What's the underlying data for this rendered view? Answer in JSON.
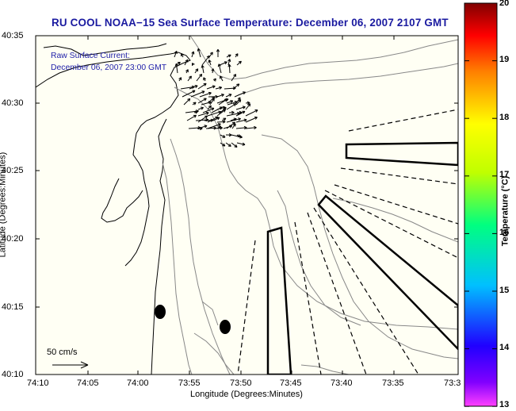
{
  "title": "RU COOL  NOAA−15  Sea Surface Temperature:  December 06, 2007 2107 GMT",
  "current_label_1": "Raw Surface Current:",
  "current_label_2": "December 06, 2007 23:00 GMT",
  "x_axis_label": "Longitude (Degrees:Minutes)",
  "y_axis_label": "Latitude (Degrees:Minutes)",
  "x_ticks": [
    "74:10",
    "74:05",
    "74:00",
    "73:55",
    "73:50",
    "73:45",
    "73:40",
    "73:35",
    "73:3"
  ],
  "y_ticks": [
    "40:35",
    "40:30",
    "40:25",
    "40:20",
    "40:15",
    "40:10"
  ],
  "colorbar": {
    "label": "Temperature (°C)",
    "ticks": [
      "20",
      "19",
      "18",
      "17",
      "16",
      "15",
      "14",
      "13"
    ],
    "colors": [
      "#ff00ff",
      "#2000ff",
      "#00b0ff",
      "#00ff80",
      "#c0ff00",
      "#ffff00",
      "#ff8000",
      "#ff0000",
      "#800000"
    ]
  },
  "scale": {
    "label": "50 cm/s"
  },
  "colors": {
    "background": "#fffff4",
    "title": "#1a1aa0",
    "contour": "#888888"
  }
}
